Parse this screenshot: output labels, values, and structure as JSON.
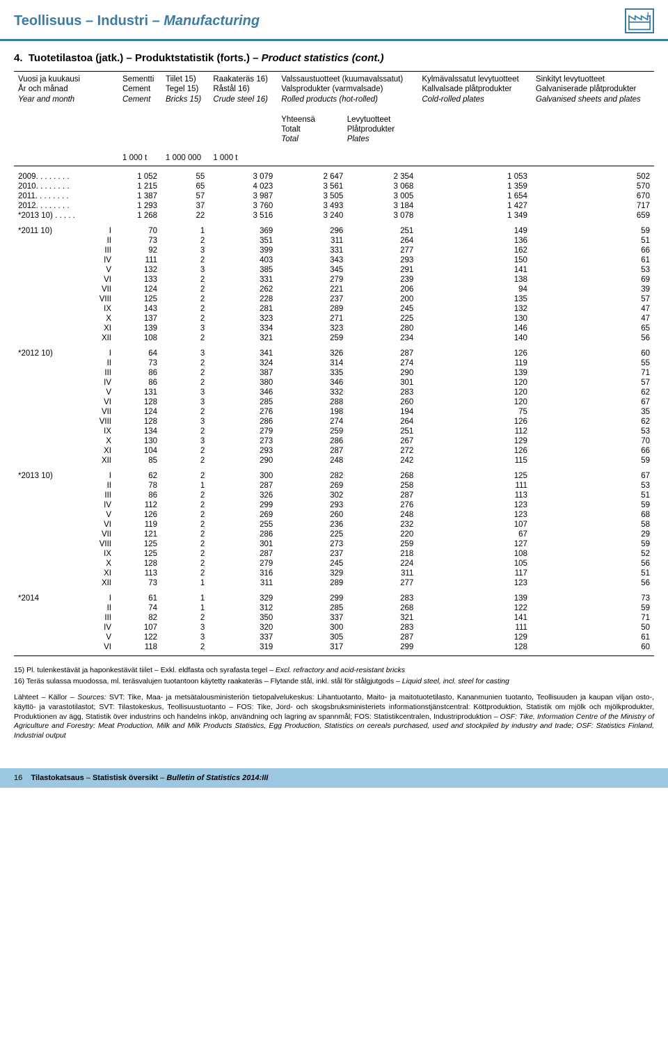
{
  "header": {
    "title_fi": "Teollisuus",
    "title_sv": "Industri",
    "title_en": "Manufacturing"
  },
  "section_title": {
    "prefix": "4.",
    "fi": "Tuotetilastoa (jatk.)",
    "sv": "Produktstatistik (forts.)",
    "en": "Product statistics (cont.)"
  },
  "cols": {
    "c0": {
      "fi": "Vuosi ja kuukausi",
      "sv": "År och månad",
      "en": "Year and month"
    },
    "c1": {
      "fi": "Sementti",
      "sv": "Cement",
      "en": "Cement"
    },
    "c2": {
      "l1": "Tiilet 15)",
      "l2": "Tegel 15)",
      "l3": "Bricks 15)"
    },
    "c3": {
      "l1": "Raakateräs 16)",
      "l2": "Råstål 16)",
      "l3": "Crude steel 16)"
    },
    "c4_group": {
      "fi": "Valssaustuotteet (kuumavalssatut)",
      "sv": "Valsprodukter (varmvalsade)",
      "en": "Rolled products (hot-rolled)"
    },
    "c4": {
      "fi": "Yhteensä",
      "sv": "Totalt",
      "en": "Total"
    },
    "c5": {
      "fi": "Levytuotteet",
      "sv": "Plåtprodukter",
      "en": "Plates"
    },
    "c6": {
      "fi": "Kylmävalssatut levytuotteet",
      "sv": "Kallvalsade plåtprodukter",
      "en": "Cold-rolled plates"
    },
    "c7": {
      "fi": "Sinkityt levytuotteet",
      "sv": "Galvaniserade plåtprodukter",
      "en": "Galvanised sheets and plates"
    }
  },
  "units": {
    "u1": "1 000 t",
    "u2": "1 000 000",
    "u3": "1 000 t"
  },
  "years": [
    {
      "label": "2009. . . . . . . .",
      "v": [
        "1 052",
        "55",
        "3 079",
        "2 647",
        "2 354",
        "1 053",
        "502"
      ]
    },
    {
      "label": "2010. . . . . . . .",
      "v": [
        "1 215",
        "65",
        "4 023",
        "3 561",
        "3 068",
        "1 359",
        "570"
      ]
    },
    {
      "label": "2011. . . . . . . .",
      "v": [
        "1 387",
        "57",
        "3 987",
        "3 505",
        "3 005",
        "1 654",
        "670"
      ]
    },
    {
      "label": "2012. . . . . . . .",
      "v": [
        "1 293",
        "37",
        "3 760",
        "3 493",
        "3 184",
        "1 427",
        "717"
      ]
    },
    {
      "label": "*2013 10) . . . . .",
      "v": [
        "1 268",
        "22",
        "3 516",
        "3 240",
        "3 078",
        "1 349",
        "659"
      ]
    }
  ],
  "blocks": [
    {
      "label": "*2011 10)",
      "rows": [
        {
          "m": "I",
          "v": [
            "70",
            "1",
            "369",
            "296",
            "251",
            "149",
            "59"
          ]
        },
        {
          "m": "II",
          "v": [
            "73",
            "2",
            "351",
            "311",
            "264",
            "136",
            "51"
          ]
        },
        {
          "m": "III",
          "v": [
            "92",
            "3",
            "399",
            "331",
            "277",
            "162",
            "66"
          ]
        },
        {
          "m": "IV",
          "v": [
            "111",
            "2",
            "403",
            "343",
            "293",
            "150",
            "61"
          ]
        },
        {
          "m": "V",
          "v": [
            "132",
            "3",
            "385",
            "345",
            "291",
            "141",
            "53"
          ]
        },
        {
          "m": "VI",
          "v": [
            "133",
            "2",
            "331",
            "279",
            "239",
            "138",
            "69"
          ]
        },
        {
          "m": "VII",
          "v": [
            "124",
            "2",
            "262",
            "221",
            "206",
            "94",
            "39"
          ]
        },
        {
          "m": "VIII",
          "v": [
            "125",
            "2",
            "228",
            "237",
            "200",
            "135",
            "57"
          ]
        },
        {
          "m": "IX",
          "v": [
            "143",
            "2",
            "281",
            "289",
            "245",
            "132",
            "47"
          ]
        },
        {
          "m": "X",
          "v": [
            "137",
            "2",
            "323",
            "271",
            "225",
            "130",
            "47"
          ]
        },
        {
          "m": "XI",
          "v": [
            "139",
            "3",
            "334",
            "323",
            "280",
            "146",
            "65"
          ]
        },
        {
          "m": "XII",
          "v": [
            "108",
            "2",
            "321",
            "259",
            "234",
            "140",
            "56"
          ]
        }
      ]
    },
    {
      "label": "*2012 10)",
      "rows": [
        {
          "m": "I",
          "v": [
            "64",
            "3",
            "341",
            "326",
            "287",
            "126",
            "60"
          ]
        },
        {
          "m": "II",
          "v": [
            "73",
            "2",
            "324",
            "314",
            "274",
            "119",
            "55"
          ]
        },
        {
          "m": "III",
          "v": [
            "86",
            "2",
            "387",
            "335",
            "290",
            "139",
            "71"
          ]
        },
        {
          "m": "IV",
          "v": [
            "86",
            "2",
            "380",
            "346",
            "301",
            "120",
            "57"
          ]
        },
        {
          "m": "V",
          "v": [
            "131",
            "3",
            "346",
            "332",
            "283",
            "120",
            "62"
          ]
        },
        {
          "m": "VI",
          "v": [
            "128",
            "3",
            "285",
            "288",
            "260",
            "120",
            "67"
          ]
        },
        {
          "m": "VII",
          "v": [
            "124",
            "2",
            "276",
            "198",
            "194",
            "75",
            "35"
          ]
        },
        {
          "m": "VIII",
          "v": [
            "128",
            "3",
            "286",
            "274",
            "264",
            "126",
            "62"
          ]
        },
        {
          "m": "IX",
          "v": [
            "134",
            "2",
            "279",
            "259",
            "251",
            "112",
            "53"
          ]
        },
        {
          "m": "X",
          "v": [
            "130",
            "3",
            "273",
            "286",
            "267",
            "129",
            "70"
          ]
        },
        {
          "m": "XI",
          "v": [
            "104",
            "2",
            "293",
            "287",
            "272",
            "126",
            "66"
          ]
        },
        {
          "m": "XII",
          "v": [
            "85",
            "2",
            "290",
            "248",
            "242",
            "115",
            "59"
          ]
        }
      ]
    },
    {
      "label": "*2013 10)",
      "rows": [
        {
          "m": "I",
          "v": [
            "62",
            "2",
            "300",
            "282",
            "268",
            "125",
            "67"
          ]
        },
        {
          "m": "II",
          "v": [
            "78",
            "1",
            "287",
            "269",
            "258",
            "111",
            "53"
          ]
        },
        {
          "m": "III",
          "v": [
            "86",
            "2",
            "326",
            "302",
            "287",
            "113",
            "51"
          ]
        },
        {
          "m": "IV",
          "v": [
            "112",
            "2",
            "299",
            "293",
            "276",
            "123",
            "59"
          ]
        },
        {
          "m": "V",
          "v": [
            "126",
            "2",
            "269",
            "260",
            "248",
            "123",
            "68"
          ]
        },
        {
          "m": "VI",
          "v": [
            "119",
            "2",
            "255",
            "236",
            "232",
            "107",
            "58"
          ]
        },
        {
          "m": "VII",
          "v": [
            "121",
            "2",
            "286",
            "225",
            "220",
            "67",
            "29"
          ]
        },
        {
          "m": "VIII",
          "v": [
            "125",
            "2",
            "301",
            "273",
            "259",
            "127",
            "59"
          ]
        },
        {
          "m": "IX",
          "v": [
            "125",
            "2",
            "287",
            "237",
            "218",
            "108",
            "52"
          ]
        },
        {
          "m": "X",
          "v": [
            "128",
            "2",
            "279",
            "245",
            "224",
            "105",
            "56"
          ]
        },
        {
          "m": "XI",
          "v": [
            "113",
            "2",
            "316",
            "329",
            "311",
            "117",
            "51"
          ]
        },
        {
          "m": "XII",
          "v": [
            "73",
            "1",
            "311",
            "289",
            "277",
            "123",
            "56"
          ]
        }
      ]
    },
    {
      "label": "*2014",
      "rows": [
        {
          "m": "I",
          "v": [
            "61",
            "1",
            "329",
            "299",
            "283",
            "139",
            "73"
          ]
        },
        {
          "m": "II",
          "v": [
            "74",
            "1",
            "312",
            "285",
            "268",
            "122",
            "59"
          ]
        },
        {
          "m": "III",
          "v": [
            "82",
            "2",
            "350",
            "337",
            "321",
            "141",
            "71"
          ]
        },
        {
          "m": "IV",
          "v": [
            "107",
            "3",
            "320",
            "300",
            "283",
            "111",
            "50"
          ]
        },
        {
          "m": "V",
          "v": [
            "122",
            "3",
            "337",
            "305",
            "287",
            "129",
            "61"
          ]
        },
        {
          "m": "VI",
          "v": [
            "118",
            "2",
            "319",
            "317",
            "299",
            "128",
            "60"
          ]
        }
      ]
    }
  ],
  "footnotes": {
    "f15": "15) Pl. tulenkestävät ja haponkestävät tiilet – Exkl. eldfasta och syrafasta tegel – Excl. refractory and acid-resistant bricks",
    "f16": "16) Teräs sulassa muodossa, ml. teräsvalujen tuotantoon käytetty raakateräs – Flytande stål, inkl. stål för stålgjutgods – Liquid steel, incl. steel for casting"
  },
  "sources": "Lähteet – Källor – Sources: SVT: Tike, Maa- ja metsätalousministeriön tietopalvelukeskus: Lihantuotanto, Maito- ja maitotuotetilasto, Kananmunien tuotanto, Teollisuuden ja kaupan viljan osto-, käyttö- ja varastotilastot; SVT: Tilastokeskus, Teollisuustuotanto – FOS: Tike, Jord- och skogsbruksministeriets informationstjänstcentral: Köttproduktion, Statistik om mjölk och mjölkprodukter, Produktionen av ägg, Statistik över industrins och handelns inköp, användning och lagring av spannmål; FOS: Statistikcentralen, Industriproduktion – OSF: Tike, Information Centre of the Ministry of Agriculture and Forestry: Meat Production, Milk and Milk Products Statistics, Egg Production, Statistics on cereals purchased, used and stockpiled by industry and trade; OSF: Statistics Finland, Industrial output",
  "footer": {
    "page": "16",
    "fi": "Tilastokatsaus",
    "sv": "Statistisk översikt",
    "en": "Bulletin of Statistics 2014:III"
  }
}
